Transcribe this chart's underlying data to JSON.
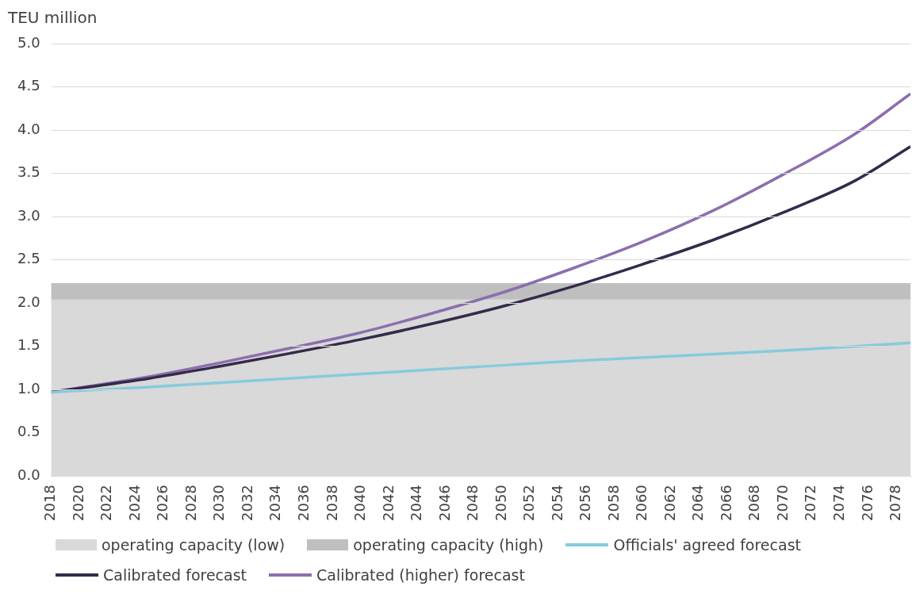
{
  "chart_data": {
    "type": "line",
    "ylabel": "TEU million",
    "xlim": [
      2018,
      2079
    ],
    "xticks": [
      2018,
      2020,
      2022,
      2024,
      2026,
      2028,
      2030,
      2032,
      2034,
      2036,
      2038,
      2040,
      2042,
      2044,
      2046,
      2048,
      2050,
      2052,
      2054,
      2056,
      2058,
      2060,
      2062,
      2064,
      2066,
      2068,
      2070,
      2072,
      2074,
      2076,
      2078
    ],
    "ylim": [
      0,
      5
    ],
    "yticks": [
      {
        "value": 0,
        "label": "0.0"
      },
      {
        "value": 0.5,
        "label": "0.5"
      },
      {
        "value": 1,
        "label": "1.0"
      },
      {
        "value": 1.5,
        "label": "1.5"
      },
      {
        "value": 2,
        "label": "2.0"
      },
      {
        "value": 2.5,
        "label": "2.5"
      },
      {
        "value": 3,
        "label": "3.0"
      },
      {
        "value": 3.5,
        "label": "3.5"
      },
      {
        "value": 4,
        "label": "4.0"
      },
      {
        "value": 4.5,
        "label": "4.5"
      },
      {
        "value": 5,
        "label": "5.0"
      }
    ],
    "grid": "y",
    "legend": "bottom",
    "marker": "none",
    "line_style": "solid",
    "x": [
      2018,
      2025,
      2030,
      2035,
      2040,
      2045,
      2050,
      2055,
      2060,
      2065,
      2070,
      2075,
      2079
    ],
    "bands": [
      {
        "axis": "y",
        "from": 0,
        "to": 2.04,
        "label": "operating capacity (low)",
        "color": "#d9d9d9"
      },
      {
        "axis": "y",
        "from": 2.04,
        "to": 2.23,
        "label": "operating capacity (high)",
        "color": "#bfbfbf"
      }
    ],
    "series": [
      {
        "name": "Officials' agreed forecast",
        "color": "#86cbdc",
        "values": [
          0.97,
          1.03,
          1.08,
          1.13,
          1.18,
          1.23,
          1.28,
          1.33,
          1.37,
          1.41,
          1.45,
          1.5,
          1.54
        ]
      },
      {
        "name": "Calibrated forecast",
        "color": "#352a4a",
        "values": [
          0.97,
          1.13,
          1.27,
          1.42,
          1.58,
          1.76,
          1.96,
          2.19,
          2.45,
          2.73,
          3.05,
          3.41,
          3.81
        ]
      },
      {
        "name": "Calibrated (higher) forecast",
        "color": "#8c6ead",
        "values": [
          0.97,
          1.15,
          1.31,
          1.48,
          1.66,
          1.88,
          2.12,
          2.4,
          2.71,
          3.07,
          3.49,
          3.95,
          4.42
        ]
      }
    ]
  }
}
